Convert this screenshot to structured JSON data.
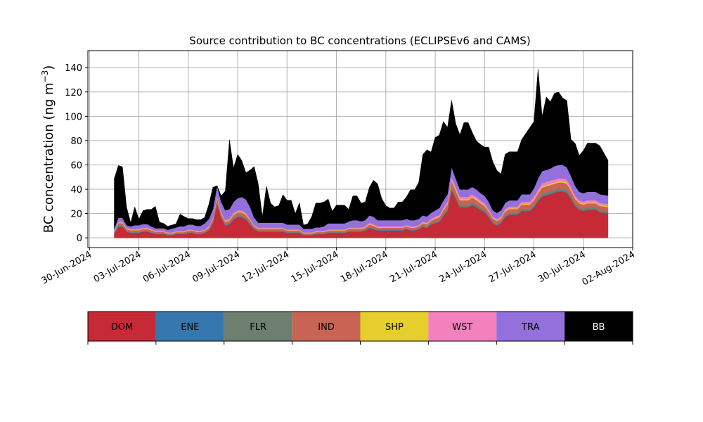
{
  "chart_data": {
    "type": "area",
    "title": "Source contribution to BC concentrations (ECLIPSEv6 and CAMS)",
    "ylabel": "BC concentration (ng m",
    "ylabel_sup": "−3",
    "ylabel_close": ")",
    "xlabel": "",
    "stacked": true,
    "grid": true,
    "x_tick_labels": [
      "30-Jun-2024",
      "03-Jul-2024",
      "06-Jul-2024",
      "09-Jul-2024",
      "12-Jul-2024",
      "15-Jul-2024",
      "18-Jul-2024",
      "21-Jul-2024",
      "24-Jul-2024",
      "27-Jul-2024",
      "30-Jul-2024",
      "02-Aug-2024"
    ],
    "x_tick_days": [
      0,
      3,
      6,
      9,
      12,
      15,
      18,
      21,
      24,
      27,
      30,
      33
    ],
    "x_range_days": [
      -0.1,
      33.0
    ],
    "y_ticks": [
      0,
      20,
      40,
      60,
      80,
      100,
      120,
      140
    ],
    "ylim": [
      -8,
      154
    ],
    "legend_position": "below",
    "series": [
      {
        "name": "DOM",
        "color": "#c52a36",
        "text_color": "#000000"
      },
      {
        "name": "ENE",
        "color": "#3777af",
        "text_color": "#000000"
      },
      {
        "name": "FLR",
        "color": "#6d8070",
        "text_color": "#000000"
      },
      {
        "name": "IND",
        "color": "#c96454",
        "text_color": "#000000"
      },
      {
        "name": "SHP",
        "color": "#e6ce2c",
        "text_color": "#000000"
      },
      {
        "name": "WST",
        "color": "#f281bd",
        "text_color": "#000000"
      },
      {
        "name": "TRA",
        "color": "#9370db",
        "text_color": "#000000"
      },
      {
        "name": "BB",
        "color": "#000000",
        "text_color": "#ffffff"
      }
    ],
    "x_days": [
      1.5,
      1.75,
      2.0,
      2.25,
      2.5,
      2.75,
      3.0,
      3.25,
      3.5,
      3.75,
      4.0,
      4.25,
      4.5,
      4.75,
      5.0,
      5.25,
      5.5,
      5.75,
      6.0,
      6.25,
      6.5,
      6.75,
      7.0,
      7.25,
      7.5,
      7.75,
      8.0,
      8.25,
      8.5,
      8.75,
      9.0,
      9.25,
      9.5,
      9.75,
      10.0,
      10.25,
      10.5,
      10.75,
      11.0,
      11.25,
      11.5,
      11.75,
      12.0,
      12.25,
      12.5,
      12.75,
      13.0,
      13.25,
      13.5,
      13.75,
      14.0,
      14.25,
      14.5,
      14.75,
      15.0,
      15.25,
      15.5,
      15.75,
      16.0,
      16.25,
      16.5,
      16.75,
      17.0,
      17.25,
      17.5,
      17.75,
      18.0,
      18.25,
      18.5,
      18.75,
      19.0,
      19.25,
      19.5,
      19.75,
      20.0,
      20.25,
      20.5,
      20.75,
      21.0,
      21.25,
      21.5,
      21.75,
      22.0,
      22.25,
      22.5,
      22.75,
      23.0,
      23.25,
      23.5,
      23.75,
      24.0,
      24.25,
      24.5,
      24.75,
      25.0,
      25.25,
      25.5,
      25.75,
      26.0,
      26.25,
      26.5,
      26.75,
      27.0,
      27.25,
      27.5,
      27.75,
      28.0,
      28.25,
      28.5,
      28.75,
      29.0,
      29.25,
      29.5,
      29.75,
      30.0,
      30.25,
      30.5,
      30.75,
      31.0,
      31.5
    ],
    "values": {
      "DOM": [
        3,
        9,
        9,
        5,
        4,
        4,
        4,
        5,
        5,
        4,
        3,
        3,
        3,
        2,
        2,
        3,
        3,
        3,
        4,
        4,
        3,
        3,
        4,
        6,
        12,
        28,
        16,
        10,
        11,
        15,
        17,
        17,
        15,
        11,
        7,
        5,
        5,
        5,
        5,
        5,
        5,
        5,
        4,
        4,
        4,
        4,
        2,
        2,
        2,
        3,
        3,
        3,
        4,
        4,
        4,
        4,
        4,
        5,
        5,
        5,
        5,
        6,
        8,
        7,
        6,
        6,
        6,
        6,
        6,
        6,
        6,
        7,
        6,
        6,
        7,
        9,
        8,
        11,
        12,
        13,
        18,
        22,
        39,
        32,
        25,
        25,
        25,
        27,
        25,
        23,
        21,
        17,
        12,
        10,
        12,
        17,
        19,
        19,
        19,
        22,
        22,
        22,
        25,
        30,
        34,
        35,
        36,
        37,
        38,
        38,
        37,
        32,
        26,
        23,
        22,
        23,
        23,
        23,
        21,
        20
      ],
      "ENE": [
        0.3,
        0.4,
        0.4,
        0.3,
        0.3,
        0.3,
        0.3,
        0.3,
        0.3,
        0.3,
        0.3,
        0.3,
        0.3,
        0.3,
        0.3,
        0.3,
        0.3,
        0.3,
        0.3,
        0.3,
        0.3,
        0.3,
        0.3,
        0.3,
        0.4,
        0.6,
        0.4,
        0.4,
        0.4,
        0.4,
        0.4,
        0.4,
        0.4,
        0.4,
        0.4,
        0.3,
        0.3,
        0.3,
        0.3,
        0.3,
        0.3,
        0.3,
        0.3,
        0.3,
        0.3,
        0.3,
        0.3,
        0.3,
        0.3,
        0.3,
        0.3,
        0.3,
        0.3,
        0.3,
        0.3,
        0.3,
        0.3,
        0.3,
        0.3,
        0.3,
        0.3,
        0.3,
        0.3,
        0.3,
        0.3,
        0.3,
        0.3,
        0.3,
        0.3,
        0.3,
        0.3,
        0.3,
        0.3,
        0.3,
        0.3,
        0.3,
        0.3,
        0.3,
        0.3,
        0.4,
        0.4,
        0.5,
        0.6,
        0.5,
        0.5,
        0.5,
        0.5,
        0.5,
        0.5,
        0.5,
        0.4,
        0.4,
        0.4,
        0.4,
        0.4,
        0.4,
        0.4,
        0.4,
        0.4,
        0.4,
        0.4,
        0.4,
        0.5,
        0.5,
        0.5,
        0.5,
        0.5,
        0.5,
        0.5,
        0.5,
        0.5,
        0.5,
        0.4,
        0.4,
        0.4,
        0.4,
        0.4,
        0.4,
        0.4,
        0.4
      ],
      "FLR": [
        0.5,
        0.7,
        0.7,
        0.5,
        0.5,
        0.5,
        0.5,
        0.5,
        0.5,
        0.5,
        0.5,
        0.5,
        0.5,
        0.4,
        0.4,
        0.4,
        0.4,
        0.4,
        0.5,
        0.5,
        0.5,
        0.5,
        0.5,
        0.6,
        0.8,
        1.2,
        0.9,
        0.8,
        0.8,
        0.9,
        1.0,
        1.0,
        1.0,
        0.9,
        0.7,
        0.6,
        0.6,
        0.6,
        0.6,
        0.6,
        0.6,
        0.6,
        0.5,
        0.5,
        0.5,
        0.5,
        0.4,
        0.4,
        0.4,
        0.5,
        0.5,
        0.5,
        0.5,
        0.5,
        0.5,
        0.5,
        0.5,
        0.6,
        0.6,
        0.6,
        0.6,
        0.6,
        0.7,
        0.7,
        0.6,
        0.6,
        0.6,
        0.6,
        0.6,
        0.6,
        0.6,
        0.7,
        0.6,
        0.6,
        0.7,
        0.8,
        0.8,
        0.9,
        1.0,
        1.0,
        1.2,
        1.4,
        2.0,
        1.8,
        1.5,
        1.5,
        1.5,
        1.6,
        1.5,
        1.4,
        1.3,
        1.2,
        1.0,
        0.9,
        1.0,
        1.2,
        1.3,
        1.3,
        1.3,
        1.4,
        1.4,
        1.4,
        1.5,
        1.7,
        1.9,
        1.9,
        2.0,
        2.0,
        2.0,
        2.0,
        2.0,
        1.8,
        1.6,
        1.5,
        1.4,
        1.5,
        1.5,
        1.5,
        1.4,
        1.4
      ],
      "IND": [
        1,
        2,
        2,
        1.5,
        1.5,
        1.5,
        1.5,
        1.5,
        1.5,
        1.5,
        1.2,
        1.2,
        1.2,
        1,
        1,
        1,
        1,
        1,
        1.2,
        1.2,
        1.2,
        1.2,
        1.2,
        1.5,
        2,
        3,
        2.5,
        2,
        2,
        2.5,
        2.5,
        2.5,
        2.5,
        2,
        1.5,
        1.5,
        1.5,
        1.5,
        1.5,
        1.5,
        1.5,
        1.5,
        1.2,
        1.2,
        1.2,
        1.2,
        1,
        1,
        1,
        1,
        1,
        1,
        1.2,
        1.2,
        1.2,
        1.2,
        1.2,
        1.5,
        1.5,
        1.5,
        1.5,
        1.5,
        2,
        2,
        1.5,
        1.5,
        1.5,
        1.5,
        1.5,
        1.5,
        1.5,
        1.5,
        1.5,
        1.5,
        1.5,
        2,
        2,
        2,
        2.5,
        2.5,
        3,
        3.5,
        5,
        4.5,
        4,
        4,
        4,
        4,
        4,
        3.5,
        3.5,
        3,
        2.5,
        2.5,
        2.5,
        3,
        3,
        3,
        3,
        3.5,
        3.5,
        3.5,
        4,
        4.5,
        5,
        5,
        5,
        5,
        5,
        5,
        5,
        4.5,
        4,
        3.5,
        3.5,
        3.5,
        3.5,
        3.5,
        3.5,
        3.5
      ],
      "SHP": [
        0.3,
        0.4,
        0.4,
        0.3,
        0.3,
        0.3,
        0.3,
        0.3,
        0.3,
        0.3,
        0.3,
        0.3,
        0.3,
        0.3,
        0.3,
        0.3,
        0.3,
        0.3,
        0.3,
        0.3,
        0.3,
        0.3,
        0.3,
        0.3,
        0.4,
        0.6,
        0.5,
        0.4,
        0.4,
        0.5,
        0.5,
        0.5,
        0.5,
        0.4,
        0.3,
        0.3,
        0.3,
        0.3,
        0.3,
        0.3,
        0.3,
        0.3,
        0.3,
        0.3,
        0.3,
        0.3,
        0.3,
        0.3,
        0.3,
        0.3,
        0.3,
        0.3,
        0.3,
        0.3,
        0.3,
        0.3,
        0.3,
        0.3,
        0.3,
        0.3,
        0.3,
        0.3,
        0.4,
        0.4,
        0.3,
        0.3,
        0.3,
        0.3,
        0.3,
        0.3,
        0.3,
        0.3,
        0.3,
        0.3,
        0.3,
        0.4,
        0.4,
        0.4,
        0.5,
        0.5,
        0.6,
        0.7,
        1.0,
        0.9,
        0.8,
        0.8,
        0.8,
        0.8,
        0.8,
        0.7,
        0.7,
        0.6,
        0.5,
        0.5,
        0.5,
        0.6,
        0.6,
        0.6,
        0.6,
        0.7,
        0.7,
        0.7,
        0.8,
        0.9,
        1.0,
        1.0,
        1.0,
        1.0,
        1.0,
        1.0,
        1.0,
        0.9,
        0.8,
        0.7,
        0.7,
        0.7,
        0.7,
        0.7,
        0.7,
        0.7
      ],
      "WST": [
        0.5,
        1,
        1,
        0.8,
        0.8,
        0.8,
        0.8,
        0.8,
        0.8,
        0.8,
        0.6,
        0.6,
        0.6,
        0.5,
        0.5,
        0.5,
        0.5,
        0.5,
        0.6,
        0.6,
        0.6,
        0.6,
        0.6,
        0.8,
        1,
        1.5,
        1.2,
        1,
        1,
        1.2,
        1.2,
        1.2,
        1.2,
        1,
        0.8,
        0.8,
        0.8,
        0.8,
        0.8,
        0.8,
        0.8,
        0.8,
        0.6,
        0.6,
        0.6,
        0.6,
        0.5,
        0.5,
        0.5,
        0.5,
        0.5,
        0.5,
        0.6,
        0.6,
        0.6,
        0.6,
        0.6,
        0.8,
        0.8,
        0.8,
        0.8,
        0.8,
        1,
        1,
        0.8,
        0.8,
        0.8,
        0.8,
        0.8,
        0.8,
        0.8,
        0.8,
        0.8,
        0.8,
        0.8,
        1,
        1,
        1,
        1.2,
        1.2,
        1.5,
        1.8,
        2.5,
        2.2,
        2,
        2,
        2,
        2,
        2,
        1.8,
        1.8,
        1.5,
        1.2,
        1.2,
        1.2,
        1.5,
        1.5,
        1.5,
        1.5,
        1.8,
        1.8,
        1.8,
        2,
        2.2,
        2.5,
        2.5,
        2.5,
        2.5,
        2.5,
        2.5,
        2.5,
        2.2,
        2,
        1.8,
        1.8,
        1.8,
        1.8,
        1.8,
        1.8,
        1.8
      ],
      "TRA": [
        2,
        3,
        3,
        2,
        2,
        3,
        3,
        3,
        3,
        2,
        2,
        2,
        2,
        2,
        3,
        3,
        4,
        4,
        4,
        4,
        4,
        4,
        5,
        6,
        7,
        8,
        8,
        8,
        8,
        9,
        10,
        11,
        11,
        10,
        6,
        4,
        4,
        4,
        4,
        4,
        4,
        4,
        4,
        4,
        4,
        4,
        3,
        3,
        3,
        3,
        3,
        4,
        5,
        5,
        5,
        5,
        5,
        5,
        6,
        6,
        5,
        5,
        6,
        6,
        5,
        5,
        5,
        5,
        5,
        5,
        5,
        5,
        5,
        5,
        5,
        5,
        5,
        5,
        5,
        6,
        6,
        6,
        8,
        7,
        6,
        6,
        6,
        6,
        6,
        6,
        6,
        6,
        5,
        5,
        5,
        5,
        5,
        5,
        5,
        6,
        6,
        6,
        7,
        9,
        10,
        10,
        10,
        11,
        11,
        11,
        10,
        9,
        8,
        7,
        7,
        7,
        7,
        7,
        7,
        7
      ],
      "BB": [
        41,
        43,
        42,
        15,
        3,
        15,
        5,
        11,
        12,
        14,
        18,
        5,
        4,
        3,
        3,
        3,
        10,
        8,
        5,
        5,
        5,
        5,
        5,
        12,
        18,
        0,
        5,
        16,
        57,
        28,
        36,
        30,
        22,
        30,
        42,
        32,
        5,
        30,
        16,
        13,
        14,
        23,
        20,
        20,
        9,
        18,
        3,
        4,
        10,
        20,
        20,
        20,
        20,
        10,
        15,
        15,
        15,
        10,
        20,
        20,
        15,
        15,
        23,
        30,
        30,
        18,
        12,
        10,
        10,
        15,
        15,
        18,
        25,
        25,
        30,
        50,
        55,
        50,
        60,
        60,
        65,
        55,
        55,
        45,
        45,
        55,
        55,
        45,
        40,
        40,
        40,
        45,
        40,
        35,
        30,
        40,
        40,
        40,
        40,
        45,
        50,
        55,
        55,
        90,
        45,
        60,
        55,
        60,
        60,
        55,
        55,
        30,
        35,
        30,
        35,
        40,
        40,
        40,
        40,
        29
      ]
    }
  }
}
